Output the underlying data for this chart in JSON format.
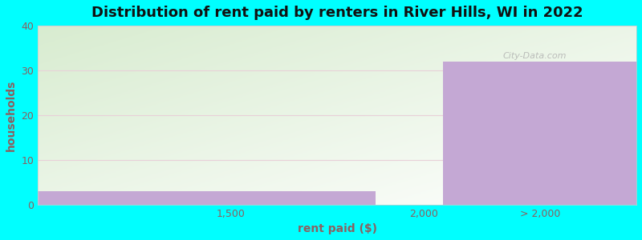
{
  "title": "Distribution of rent paid by renters in River Hills, WI in 2022",
  "xlabel": "rent paid ($)",
  "ylabel": "households",
  "background_color": "#00FFFF",
  "bar_color": "#c4a8d4",
  "bar_edge_color": "#b090c0",
  "grid_color": "#e8d0d8",
  "title_color": "#111111",
  "label_color": "#8B6060",
  "tick_color": "#8B6060",
  "ylim": [
    0,
    40
  ],
  "yticks": [
    0,
    10,
    20,
    30,
    40
  ],
  "bar_values": [
    3,
    32
  ],
  "xtick_labels": [
    "1,500",
    "2,000",
    "> 2,000"
  ],
  "title_fontsize": 13,
  "axis_label_fontsize": 10,
  "tick_fontsize": 9,
  "plot_bg_green": "#d8ecd0",
  "plot_bg_white": "#ffffff"
}
